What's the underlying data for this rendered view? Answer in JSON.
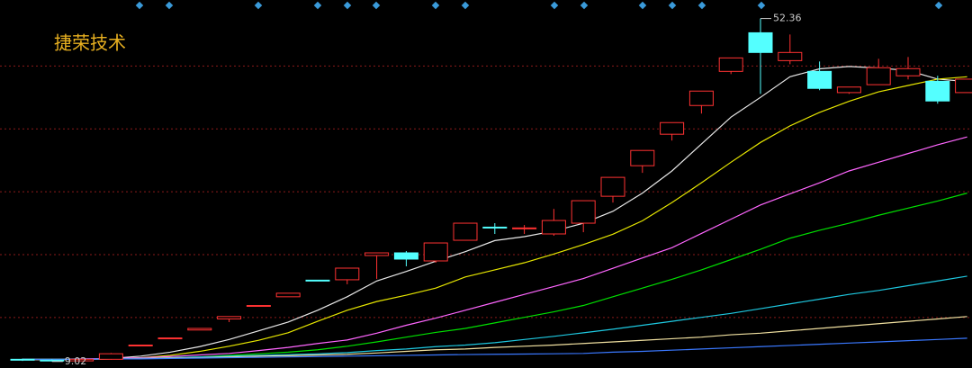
{
  "chart_data": {
    "type": "candlestick",
    "title": "捷荣技术",
    "open": [
      9.3,
      9.2,
      9.1,
      9.3,
      11.0,
      11.95,
      13.0,
      14.4,
      16.0,
      17.2,
      19.3,
      19.35,
      22.41,
      22.75,
      21.73,
      24.34,
      26.0,
      25.8,
      25.14,
      26.5,
      29.9,
      33.76,
      37.74,
      41.37,
      45.68,
      50.56,
      47.04,
      45.68,
      43.0,
      44.0,
      45.12,
      44.43,
      43.0
    ],
    "high": [
      9.4,
      9.3,
      9.4,
      10.1,
      11.1,
      12.0,
      13.2,
      14.7,
      16.1,
      17.65,
      19.3,
      20.82,
      22.75,
      22.98,
      24.0,
      26.5,
      26.5,
      26.27,
      28.3,
      29.34,
      32.29,
      35.69,
      39.21,
      43.19,
      47.38,
      52.36,
      50.34,
      46.93,
      43.7,
      47.27,
      47.5,
      45.12,
      44.7
    ],
    "low": [
      9.1,
      9.02,
      9.05,
      9.25,
      11.0,
      11.95,
      13.0,
      14.0,
      16.0,
      17.2,
      19.2,
      18.78,
      19.46,
      21.05,
      21.5,
      24.34,
      25.14,
      25.14,
      24.91,
      25.36,
      29.11,
      32.86,
      36.94,
      40.35,
      45.34,
      42.84,
      46.59,
      43.3,
      42.84,
      44.0,
      44.66,
      41.6,
      43.0
    ],
    "close": [
      9.2,
      9.1,
      9.3,
      10.0,
      11.1,
      12.0,
      13.2,
      14.7,
      16.1,
      17.65,
      19.2,
      20.82,
      22.75,
      21.96,
      24.0,
      26.5,
      25.9,
      25.9,
      26.84,
      29.34,
      32.29,
      35.69,
      39.21,
      43.19,
      47.38,
      48.07,
      48.07,
      43.53,
      43.7,
      46.14,
      46.03,
      41.94,
      44.7
    ],
    "up_color": "#ff3232",
    "down_color": "#54ffff",
    "ylim": [
      8.2,
      54.7
    ],
    "grid_lines": [
      14.58,
      22.53,
      30.47,
      38.42,
      46.36
    ],
    "grid_color": "#8b1a1a",
    "high_mark": 52.36,
    "low_mark": 9.02,
    "ma_lines": [
      {
        "color": "#e8e8e8",
        "values": [
          9.25,
          9.25,
          9.3,
          9.4,
          9.7,
          10.2,
          10.9,
          11.8,
          12.9,
          14.0,
          15.5,
          17.2,
          19.2,
          20.4,
          21.7,
          22.9,
          24.3,
          24.8,
          25.5,
          26.5,
          28.0,
          30.3,
          33.1,
          36.5,
          39.9,
          42.4,
          45.0,
          46.0,
          46.3,
          46.1,
          45.8,
          44.7,
          44.4
        ]
      },
      {
        "color": "#e6e600",
        "values": [
          9.3,
          9.3,
          9.3,
          9.35,
          9.5,
          9.8,
          10.3,
          10.95,
          11.7,
          12.65,
          14.1,
          15.5,
          16.6,
          17.4,
          18.3,
          19.7,
          20.6,
          21.5,
          22.6,
          23.8,
          25.1,
          26.8,
          29.1,
          31.6,
          34.2,
          36.7,
          38.8,
          40.5,
          41.9,
          43.1,
          43.9,
          44.7,
          45.0
        ]
      },
      {
        "color": "#ff66ff",
        "values": [
          9.3,
          9.3,
          9.35,
          9.4,
          9.5,
          9.65,
          9.85,
          10.04,
          10.4,
          10.8,
          11.3,
          11.74,
          12.6,
          13.6,
          14.5,
          15.5,
          16.5,
          17.5,
          18.5,
          19.5,
          20.8,
          22.1,
          23.4,
          25.2,
          27.0,
          28.8,
          30.2,
          31.6,
          33.1,
          34.2,
          35.3,
          36.4,
          37.4
        ]
      },
      {
        "color": "#00e000",
        "values": [
          9.3,
          9.3,
          9.3,
          9.35,
          9.4,
          9.5,
          9.6,
          9.8,
          10.0,
          10.2,
          10.5,
          10.95,
          11.5,
          12.1,
          12.7,
          13.2,
          13.9,
          14.6,
          15.3,
          16.1,
          17.2,
          18.3,
          19.4,
          20.6,
          21.9,
          23.2,
          24.6,
          25.6,
          26.5,
          27.5,
          28.4,
          29.3,
          30.3
        ]
      },
      {
        "color": "#1ec8e0",
        "values": [
          9.3,
          9.3,
          9.3,
          9.35,
          9.4,
          9.5,
          9.6,
          9.7,
          9.8,
          9.9,
          10.0,
          10.15,
          10.4,
          10.6,
          10.9,
          11.1,
          11.4,
          11.8,
          12.2,
          12.65,
          13.1,
          13.6,
          14.1,
          14.6,
          15.1,
          15.7,
          16.3,
          16.9,
          17.5,
          18.0,
          18.6,
          19.2,
          19.8
        ]
      },
      {
        "color": "#f0e0a0",
        "values": [
          9.3,
          9.3,
          9.3,
          9.35,
          9.4,
          9.45,
          9.5,
          9.6,
          9.7,
          9.75,
          9.85,
          9.93,
          10.1,
          10.3,
          10.5,
          10.6,
          10.8,
          10.95,
          11.1,
          11.3,
          11.5,
          11.7,
          11.9,
          12.1,
          12.4,
          12.6,
          12.9,
          13.2,
          13.5,
          13.8,
          14.1,
          14.4,
          14.7
        ]
      },
      {
        "color": "#3a78ff",
        "values": [
          9.3,
          9.3,
          9.3,
          9.35,
          9.35,
          9.4,
          9.45,
          9.5,
          9.55,
          9.6,
          9.65,
          9.7,
          9.75,
          9.8,
          9.85,
          9.9,
          9.93,
          9.96,
          10.0,
          10.04,
          10.2,
          10.3,
          10.45,
          10.6,
          10.75,
          10.9,
          11.05,
          11.2,
          11.35,
          11.5,
          11.65,
          11.8,
          11.97
        ]
      }
    ]
  }
}
